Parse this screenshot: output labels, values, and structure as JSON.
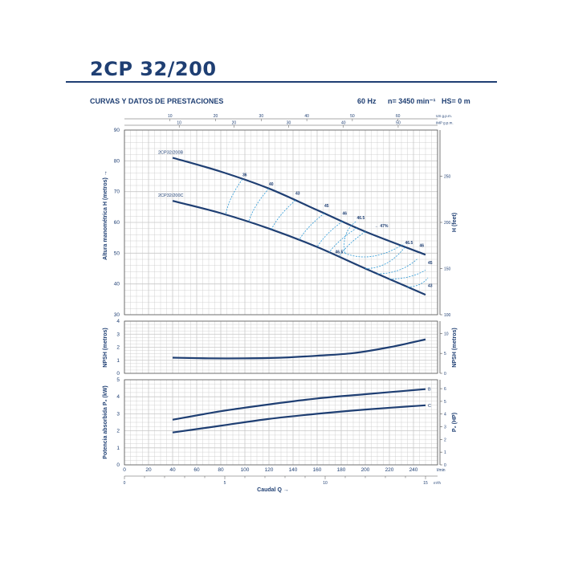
{
  "header": {
    "model": "2CP 32/200",
    "subtitle": "CURVAS Y DATOS DE PRESTACIONES",
    "frequency": "60 Hz",
    "speed": "n= 3450 min⁻¹",
    "hs": "HS= 0 m"
  },
  "colors": {
    "curve": "#1f3f73",
    "efficiency": "#2f9ad6",
    "grid": "#c8c8c8",
    "text": "#1f3f73"
  },
  "chart_data": [
    {
      "type": "line",
      "panel": "head",
      "ylabel": "Altura manométrica H (metros) →",
      "y2label": "H (feet)",
      "xlabel": "Caudal Q →",
      "x_units": [
        "l/min",
        "m³/h"
      ],
      "top_axis_units": [
        "US g.p.m.",
        "IMP g.p.m."
      ],
      "xlim": [
        0,
        260
      ],
      "ylim": [
        30,
        90
      ],
      "y2lim": [
        100,
        300
      ],
      "x_ticks": [
        0,
        20,
        40,
        60,
        80,
        100,
        120,
        140,
        160,
        180,
        200,
        220,
        240
      ],
      "y_ticks": [
        30,
        40,
        50,
        60,
        70,
        80,
        90
      ],
      "y2_ticks": [
        100,
        150,
        200,
        250
      ],
      "m3h_ticks": [
        0,
        5,
        10,
        15
      ],
      "us_gpm_ticks": [
        10,
        20,
        30,
        40,
        50,
        60
      ],
      "imp_gpm_ticks": [
        10,
        20,
        30,
        40,
        50
      ],
      "grid": true,
      "series": [
        {
          "name": "2CP32/200B",
          "x": [
            40,
            80,
            120,
            160,
            200,
            250
          ],
          "y": [
            81,
            76.5,
            71,
            64,
            57,
            49.5
          ]
        },
        {
          "name": "2CP32/200C",
          "x": [
            40,
            80,
            120,
            160,
            200,
            250
          ],
          "y": [
            67,
            63,
            58,
            52,
            45,
            36.5
          ]
        }
      ],
      "efficiency_labels": [
        {
          "text": "36",
          "x": 98,
          "y": 75
        },
        {
          "text": "40",
          "x": 120,
          "y": 72
        },
        {
          "text": "43",
          "x": 142,
          "y": 69
        },
        {
          "text": "45",
          "x": 166,
          "y": 65
        },
        {
          "text": "46",
          "x": 181,
          "y": 62.5
        },
        {
          "text": "46.5",
          "x": 193,
          "y": 61
        },
        {
          "text": "← 47%",
          "x": 208,
          "y": 58.5
        },
        {
          "text": "46.5",
          "x": 175,
          "y": 50
        },
        {
          "text": "46.5",
          "x": 233,
          "y": 53
        },
        {
          "text": "46",
          "x": 245,
          "y": 52
        },
        {
          "text": "45",
          "x": 252,
          "y": 46.5
        },
        {
          "text": "43",
          "x": 252,
          "y": 39
        }
      ]
    },
    {
      "type": "line",
      "panel": "npsh",
      "ylabel": "NPSH (metros)",
      "y2label": "NPSH (metros)",
      "ylim": [
        0,
        4
      ],
      "y_ticks": [
        0,
        1,
        2,
        3,
        4
      ],
      "y2_ticks": [
        0,
        5,
        10
      ],
      "grid": true,
      "series": [
        {
          "x": [
            40,
            70,
            100,
            130,
            160,
            190,
            220,
            250
          ],
          "y": [
            1.2,
            1.15,
            1.15,
            1.2,
            1.35,
            1.55,
            2.0,
            2.6
          ]
        }
      ]
    },
    {
      "type": "line",
      "panel": "power",
      "ylabel": "Potencia absorbida P₂ (kW)",
      "y2label": "P₂ (HP)",
      "xlim": [
        0,
        260
      ],
      "ylim": [
        0,
        5
      ],
      "y_ticks": [
        0,
        1,
        2,
        3,
        4,
        5
      ],
      "y2_ticks": [
        0,
        1,
        2,
        3,
        4,
        5,
        6
      ],
      "grid": true,
      "series": [
        {
          "name": "B",
          "x": [
            40,
            80,
            120,
            160,
            200,
            250
          ],
          "y": [
            2.65,
            3.15,
            3.55,
            3.9,
            4.15,
            4.45
          ]
        },
        {
          "name": "C",
          "x": [
            40,
            80,
            120,
            160,
            200,
            250
          ],
          "y": [
            1.9,
            2.3,
            2.7,
            3.0,
            3.25,
            3.5
          ]
        }
      ]
    }
  ]
}
